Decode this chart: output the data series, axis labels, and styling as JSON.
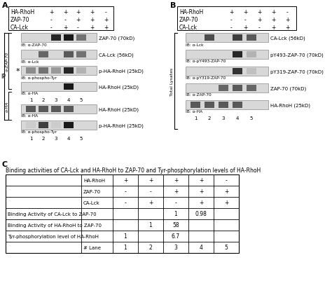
{
  "panel_A_label": "A",
  "panel_B_label": "B",
  "panel_C_label": "C",
  "conditions_header": [
    "HA-RhoH",
    "ZAP-70",
    "CA-Lck"
  ],
  "conditions_A": [
    [
      "+",
      "+",
      "+",
      "+",
      "-"
    ],
    [
      "-",
      "-",
      "+",
      "+",
      "+"
    ],
    [
      "-",
      "+",
      "-",
      "+",
      "+"
    ]
  ],
  "conditions_B": [
    [
      "+",
      "+",
      "+",
      "+",
      "-"
    ],
    [
      "-",
      "-",
      "+",
      "+",
      "+"
    ],
    [
      "-",
      "+",
      "-",
      "+",
      "+"
    ]
  ],
  "panel_A_ip_label": "IP",
  "panel_A_alpha_ZAP70_label": "α-ZAP-70",
  "panel_A_alpha_HA_label": "α-HA",
  "panel_A_blots": [
    {
      "ib": "IB: α-ZAP-70",
      "band_label": "ZAP-70 (70kD)",
      "intensities": [
        0,
        0,
        0.85,
        0.9,
        0.55
      ]
    },
    {
      "ib": "IB: α-Lck",
      "band_label": "CA-Lck (56kD)",
      "intensities": [
        0,
        0.6,
        0,
        0.65,
        0.55
      ]
    },
    {
      "ib": "IB: α-phospho-Tyr",
      "band_label": "p-HA-RhoH (25kD)",
      "intensities": [
        0.45,
        0.55,
        0.4,
        0.85,
        0.3
      ],
      "asterisk": true
    },
    {
      "ib": "IB: α-HA",
      "band_label": "HA-RhoH (25kD)",
      "intensities": [
        0,
        0,
        0,
        0.9,
        0
      ]
    }
  ],
  "panel_A_ha_blots": [
    {
      "ib": "IB: α-HA",
      "band_label": "HA-RhoH (25kD)",
      "intensities": [
        0.65,
        0.65,
        0.65,
        0.65,
        0
      ]
    },
    {
      "ib": "IB: α-phospho-Tyr",
      "band_label": "p-HA-RhoH (25kD)",
      "intensities": [
        0.2,
        0.75,
        0.2,
        0.9,
        0
      ]
    }
  ],
  "panel_B_total_label": "Total Lysates",
  "panel_B_blots": [
    {
      "ib": "IB: α-Lck",
      "band_label": "CA-Lck (56kD)",
      "intensities": [
        0,
        0.7,
        0,
        0.75,
        0.65
      ]
    },
    {
      "ib": "IB: α-pY493-ZAP-70",
      "band_label": "pY493-ZAP-70 (70kD)",
      "intensities": [
        0,
        0,
        0,
        0.85,
        0.3
      ]
    },
    {
      "ib": "IB: α-pY319-ZAP-70",
      "band_label": "pY319-ZAP-70 (70kD)",
      "intensities": [
        0,
        0,
        0,
        0.8,
        0.25
      ]
    },
    {
      "ib": "IB: α-ZAP-70",
      "band_label": "ZAP-70 (70kD)",
      "intensities": [
        0,
        0,
        0.6,
        0.65,
        0.6
      ]
    },
    {
      "ib": "IB: α-HA",
      "band_label": "HA-RhoH (25kD)",
      "intensities": [
        0.65,
        0.65,
        0.65,
        0.65,
        0
      ]
    }
  ],
  "panel_C_title": "Binding activities of CA-Lck and HA-RhoH to ZAP-70 and Tyr-phosphorylation levels of HA-RhoH",
  "table_header_row": [
    "HA-RhoH",
    "+",
    "+",
    "+",
    "+",
    "-"
  ],
  "table_row2": [
    "ZAP-70",
    "-",
    "-",
    "+",
    "+",
    "+"
  ],
  "table_row3": [
    "CA-Lck",
    "-",
    "+",
    "-",
    "+",
    "+"
  ],
  "table_row4_label": "Binding Activity of CA-Lck to ZAP-70",
  "table_row4_vals": {
    "4": "1",
    "5": "0.98"
  },
  "table_row5_label": "Binding Activity of HA-RhoH to ZAP-70",
  "table_row5_vals": {
    "3": "1",
    "4": "58"
  },
  "table_row6_label": "Tyr-phosphorylation level of HA-RhoH",
  "table_row6_vals": {
    "2": "1",
    "4": "6.7"
  },
  "table_footer": [
    "# Lane",
    "1",
    "2",
    "3",
    "4",
    "5"
  ],
  "blot_bg": "#d8d8d8",
  "band_dark": "#2a2a2a",
  "band_mid": "#555555",
  "band_light": "#888888"
}
